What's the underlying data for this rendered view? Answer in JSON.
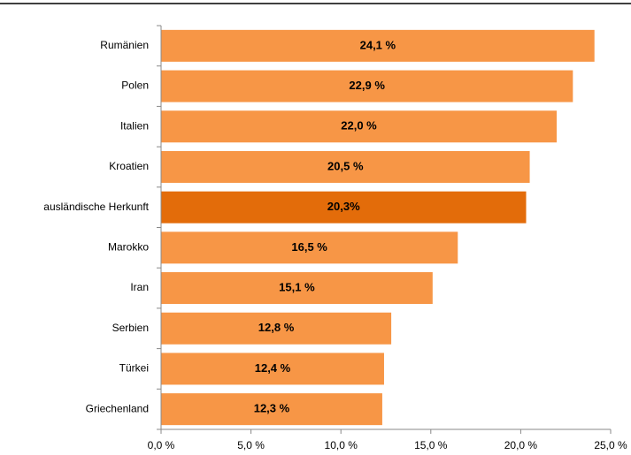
{
  "chart_data": {
    "type": "bar",
    "orientation": "horizontal",
    "categories": [
      "Rumänien",
      "Polen",
      "Italien",
      "Kroatien",
      "ausländische Herkunft",
      "Marokko",
      "Iran",
      "Serbien",
      "Türkei",
      "Griechenland"
    ],
    "values": [
      24.1,
      22.9,
      22.0,
      20.5,
      20.3,
      16.5,
      15.1,
      12.8,
      12.4,
      12.3
    ],
    "value_labels": [
      "24,1 %",
      "22,9 %",
      "22,0 %",
      "20,5 %",
      "20,3%",
      "16,5 %",
      "15,1 %",
      "12,8 %",
      "12,4 %",
      "12,3 %"
    ],
    "colors": [
      "#f79646",
      "#f79646",
      "#f79646",
      "#f79646",
      "#e36c0a",
      "#f79646",
      "#f79646",
      "#f79646",
      "#f79646",
      "#f79646"
    ],
    "xlim": [
      0,
      25
    ],
    "xticks": [
      {
        "value": 0,
        "label": "0,0 %"
      },
      {
        "value": 5,
        "label": "5,0 %"
      },
      {
        "value": 10,
        "label": "10,0 %"
      },
      {
        "value": 15,
        "label": "15,0 %"
      },
      {
        "value": 20,
        "label": "20,0 %"
      },
      {
        "value": 25,
        "label": "25,0 %"
      }
    ],
    "grid": false
  }
}
